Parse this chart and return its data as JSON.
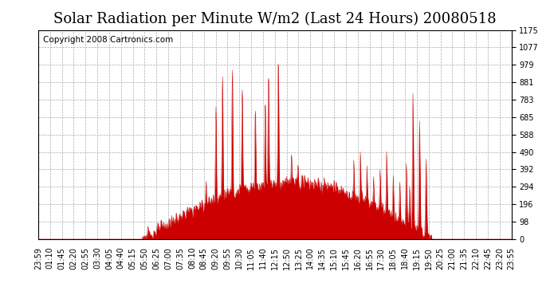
{
  "title": "Solar Radiation per Minute W/m2 (Last 24 Hours) 20080518",
  "copyright_text": "Copyright 2008 Cartronics.com",
  "background_color": "#ffffff",
  "plot_bg_color": "#ffffff",
  "fill_color": "#cc0000",
  "line_color": "#cc0000",
  "grid_color": "#aaaaaa",
  "dashed_line_color": "#cc0000",
  "ymin": 0.0,
  "ymax": 1175.0,
  "yticks": [
    0.0,
    97.9,
    195.8,
    293.8,
    391.7,
    489.6,
    587.5,
    685.4,
    783.3,
    881.2,
    979.2,
    1077.1,
    1175.0
  ],
  "x_labels": [
    "23:59",
    "01:10",
    "01:45",
    "02:20",
    "02:55",
    "03:30",
    "04:05",
    "04:40",
    "05:15",
    "05:50",
    "06:25",
    "07:00",
    "07:35",
    "08:10",
    "08:45",
    "09:20",
    "09:55",
    "10:30",
    "11:05",
    "11:40",
    "12:15",
    "12:50",
    "13:25",
    "14:00",
    "14:35",
    "15:10",
    "15:45",
    "16:20",
    "16:55",
    "17:30",
    "18:05",
    "18:40",
    "19:15",
    "19:50",
    "20:25",
    "21:00",
    "21:35",
    "22:10",
    "22:45",
    "23:20",
    "23:55"
  ],
  "title_fontsize": 13,
  "copyright_fontsize": 7.5,
  "tick_fontsize": 7,
  "n_points": 1440
}
